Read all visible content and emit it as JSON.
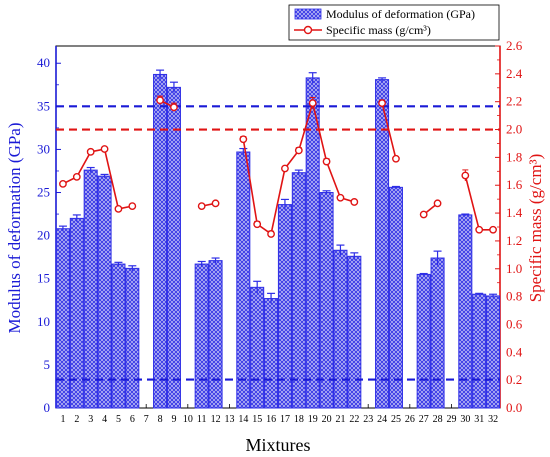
{
  "chart_data": {
    "type": "bar",
    "xlabel": "Mixtures",
    "ylabel": "Modulus of deformation (GPa)",
    "ylabel_right": "Specific mass (g/cm³)",
    "categories": [
      "1",
      "2",
      "3",
      "4",
      "5",
      "6",
      "7",
      "8",
      "9",
      "10",
      "11",
      "12",
      "13",
      "14",
      "15",
      "16",
      "17",
      "18",
      "19",
      "20",
      "21",
      "22",
      "23",
      "24",
      "25",
      "26",
      "27",
      "28",
      "29",
      "30",
      "31",
      "32"
    ],
    "ylim": [
      0,
      42
    ],
    "ylim_right": [
      0,
      2.6
    ],
    "yticks": [
      0,
      5,
      10,
      15,
      20,
      25,
      30,
      35,
      40
    ],
    "yticks_right": [
      0.0,
      0.2,
      0.4,
      0.6,
      0.8,
      1.0,
      1.2,
      1.4,
      1.6,
      1.8,
      2.0,
      2.2,
      2.4,
      2.6
    ],
    "legend_position": "top-right",
    "colors": {
      "bar": "#2e2ee6",
      "line": "#e01414",
      "left_axis": "#1a1ad6",
      "right_axis": "#e01414"
    },
    "series": [
      {
        "name": "Modulus of deformation (GPa)",
        "type": "bar",
        "axis": "left",
        "values": [
          20.8,
          22.0,
          27.6,
          26.9,
          16.7,
          16.2,
          null,
          38.7,
          37.2,
          null,
          16.7,
          17.1,
          null,
          29.7,
          14.0,
          12.7,
          23.6,
          27.3,
          38.3,
          25.0,
          18.3,
          17.6,
          null,
          38.1,
          25.6,
          null,
          15.5,
          17.4,
          null,
          22.4,
          13.2,
          13.0
        ],
        "errors": [
          0.3,
          0.4,
          0.3,
          0.2,
          0.2,
          0.3,
          null,
          0.5,
          0.6,
          null,
          0.3,
          0.3,
          null,
          0.4,
          0.7,
          0.6,
          0.6,
          0.3,
          0.6,
          0.2,
          0.6,
          0.4,
          null,
          0.2,
          0.1,
          null,
          0.1,
          0.8,
          null,
          0.1,
          0.1,
          0.2
        ]
      },
      {
        "name": "Specific mass (g/cm³)",
        "type": "line",
        "axis": "right",
        "values": [
          1.61,
          1.66,
          1.84,
          1.86,
          1.43,
          1.45,
          null,
          2.21,
          2.16,
          null,
          1.45,
          1.47,
          null,
          1.93,
          1.32,
          1.25,
          1.72,
          1.85,
          2.19,
          1.77,
          1.51,
          1.48,
          null,
          2.19,
          1.79,
          null,
          1.39,
          1.47,
          null,
          1.67,
          1.28,
          1.28
        ],
        "errors": [
          0.01,
          0.01,
          0.01,
          0.01,
          0.01,
          0.01,
          null,
          0.03,
          0.03,
          null,
          0.01,
          0.01,
          null,
          0.02,
          0.02,
          0.02,
          0.01,
          0.02,
          0.04,
          0.02,
          0.01,
          0.01,
          null,
          0.02,
          0.01,
          null,
          0.01,
          0.01,
          null,
          0.04,
          0.01,
          0.01
        ]
      }
    ],
    "reference_lines": [
      {
        "axis": "left",
        "value": 35.0,
        "color": "#1a1ad6",
        "style": "dashed"
      },
      {
        "axis": "left",
        "value": 3.3,
        "color": "#1a1ad6",
        "style": "dashed"
      },
      {
        "axis": "right",
        "value": 2.0,
        "color": "#e01414",
        "style": "dashed"
      }
    ]
  }
}
